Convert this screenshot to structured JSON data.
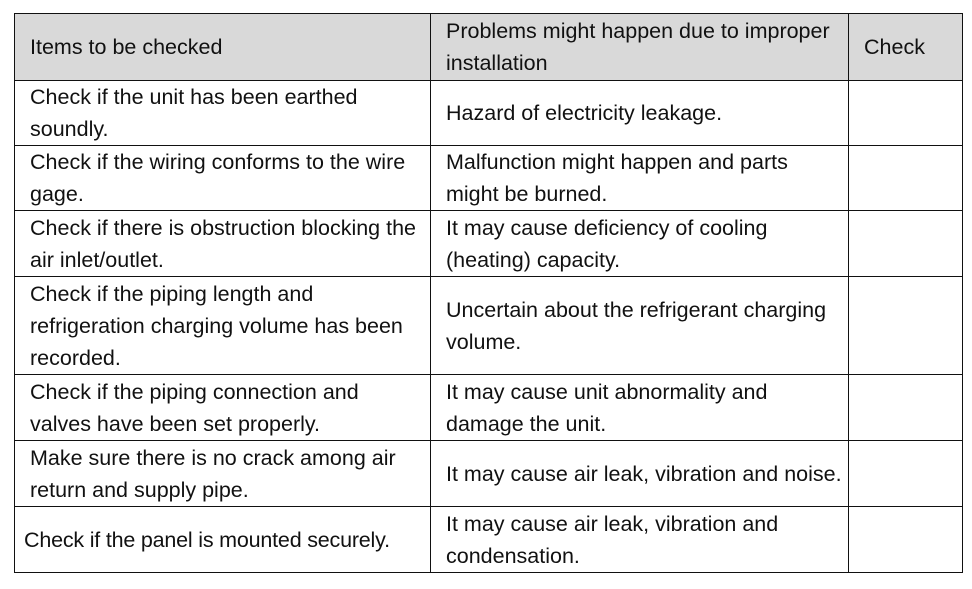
{
  "table": {
    "headers": [
      "Items to be checked",
      "Problems might happen due to improper installation",
      "Check"
    ],
    "rows": [
      {
        "item": "Check if the unit has been earthed soundly.",
        "problem": "Hazard of electricity leakage.",
        "check": ""
      },
      {
        "item": "Check if the wiring conforms to the wire gage.",
        "problem": "Malfunction might happen and parts might be burned.",
        "check": ""
      },
      {
        "item": "Check if there is obstruction blocking the air inlet/outlet.",
        "problem": "It may cause deficiency of cooling (heating) capacity.",
        "check": ""
      },
      {
        "item": "Check if the piping length and refrigeration charging volume has been recorded.",
        "problem": "Uncertain about the refrigerant charging volume.",
        "check": ""
      },
      {
        "item": "Check if the piping connection and valves have been set properly.",
        "problem": "It may cause unit abnormality and damage the unit.",
        "check": ""
      },
      {
        "item": "Make sure there is no crack among air return and supply pipe.",
        "problem": "It may cause air leak, vibration and noise.",
        "check": ""
      },
      {
        "item": "Check if the panel is mounted securely.",
        "problem": "It may cause air leak, vibration and condensation.",
        "check": ""
      }
    ]
  }
}
